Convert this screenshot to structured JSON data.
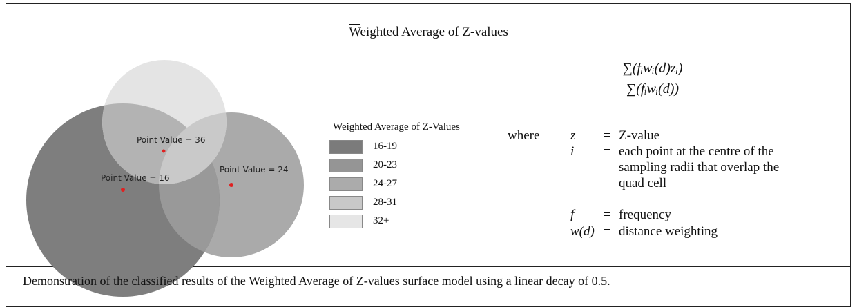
{
  "figure": {
    "title": "Weighted Average of Z-values",
    "map": {
      "labels": [
        "Point Value = 36",
        "Point Value = 16",
        "Point Value = 24"
      ]
    },
    "legend": {
      "title": "Weighted Average of Z-Values",
      "items": [
        {
          "label": "16-19",
          "color": "#7b7b7b"
        },
        {
          "label": "20-23",
          "color": "#959595"
        },
        {
          "label": "24-27",
          "color": "#ababab"
        },
        {
          "label": "28-31",
          "color": "#c8c8c8"
        },
        {
          "label": "32+",
          "color": "#e6e6e6"
        }
      ]
    },
    "formula": {
      "numerator": "∑(fᵢwᵢ(d)zᵢ)",
      "denominator": "∑(fᵢwᵢ(d))"
    },
    "where": {
      "label": "where",
      "rows": [
        {
          "symbol": "z",
          "eq": "=",
          "text": "Z-value"
        },
        {
          "symbol": "i",
          "eq": "=",
          "text": "each point at the centre of the sampling radii that overlap the quad cell"
        },
        {
          "symbol": "f",
          "eq": "=",
          "text": "frequency"
        },
        {
          "symbol": "w(d)",
          "eq": "=",
          "text": "distance weighting"
        }
      ]
    },
    "caption": "Demonstration of the classified results of the Weighted Average of Z-values surface model using a linear decay of 0.5."
  }
}
